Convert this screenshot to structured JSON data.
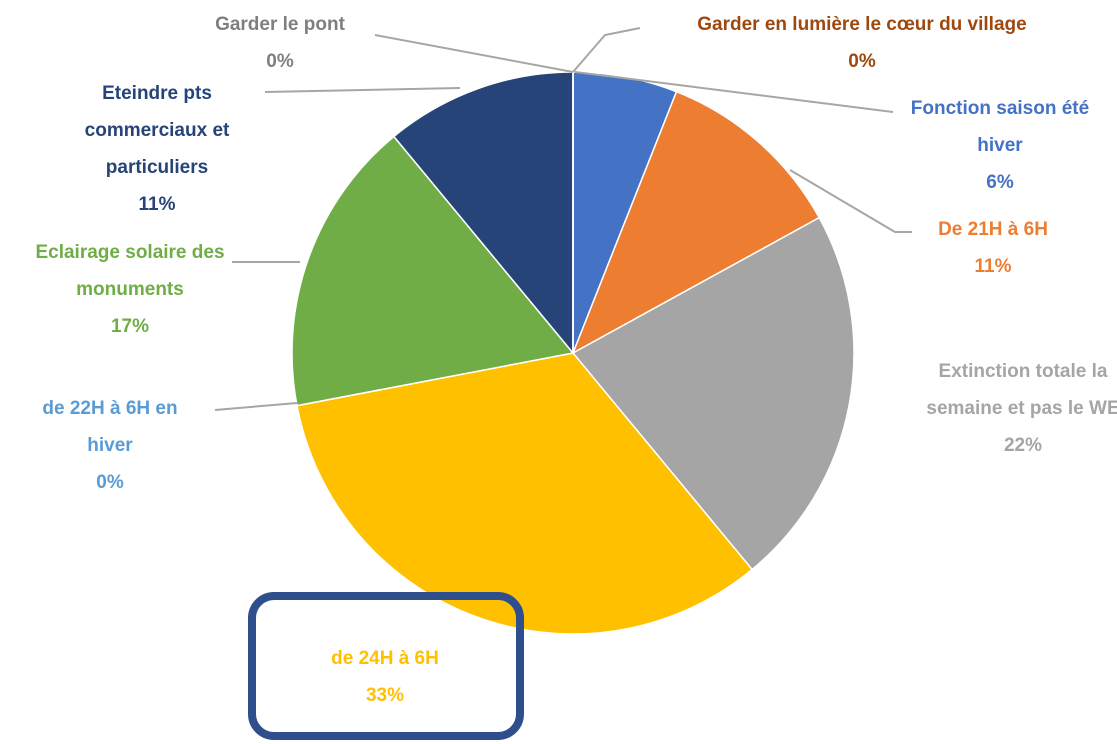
{
  "chart_data": {
    "type": "pie",
    "categories": [
      "Fonction saison été hiver",
      "De 21H à 6H",
      "Extinction totale la semaine et pas le WE",
      "de 24H à 6H",
      "de 22H à 6H en hiver",
      "Eclairage solaire des monuments",
      "Eteindre pts commerciaux et particuliers",
      "Garder le pont",
      "Garder en lumière le cœur du village"
    ],
    "values": [
      6,
      11,
      22,
      33,
      0,
      17,
      11,
      0,
      0
    ],
    "value_labels": [
      "6%",
      "11%",
      "22%",
      "33%",
      "0%",
      "17%",
      "11%",
      "0%",
      "0%"
    ],
    "colors": [
      "#4472c4",
      "#ed7d31",
      "#a5a5a5",
      "#ffc000",
      "#5b9bd5",
      "#70ad47",
      "#264478",
      "#7f7f7f",
      "#9e480e"
    ]
  }
}
